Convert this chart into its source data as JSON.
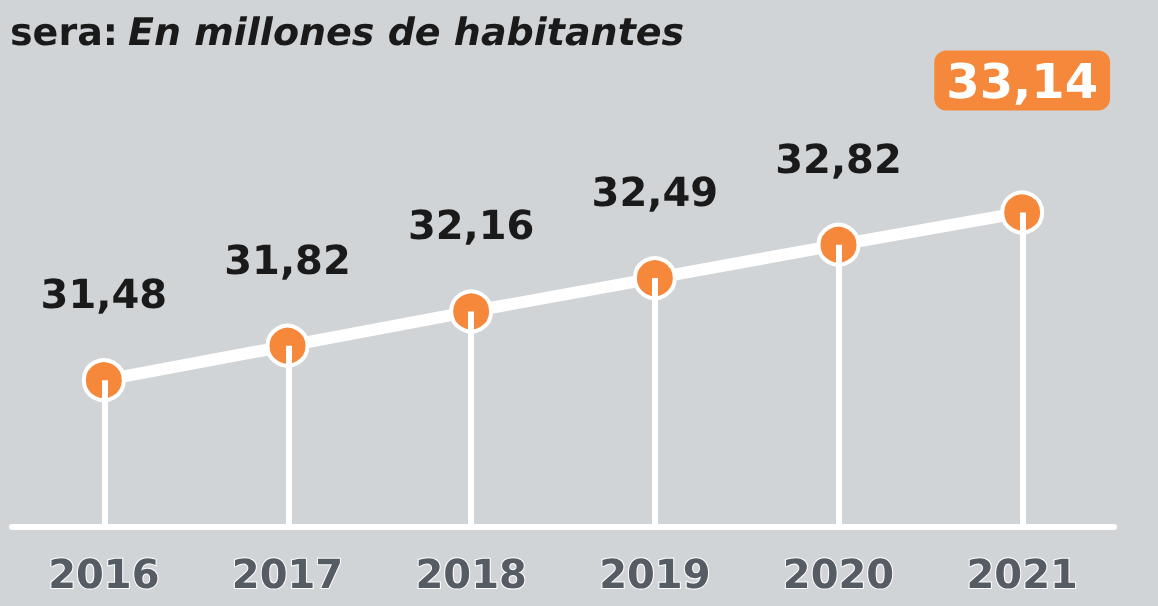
{
  "chart_data": {
    "type": "line",
    "title": "sera:",
    "subtitle": "En millones de habitantes",
    "categories": [
      "2016",
      "2017",
      "2018",
      "2019",
      "2020",
      "2021"
    ],
    "series": [
      {
        "color": "#ffffff",
        "values": [
          31.48,
          31.82,
          32.16,
          32.49,
          32.82,
          33.14
        ],
        "value_labels": [
          "31,48",
          "31,82",
          "32,16",
          "32,49",
          "32,82",
          "33,14"
        ]
      }
    ],
    "marker": "circle",
    "grid": "x"
  }
}
